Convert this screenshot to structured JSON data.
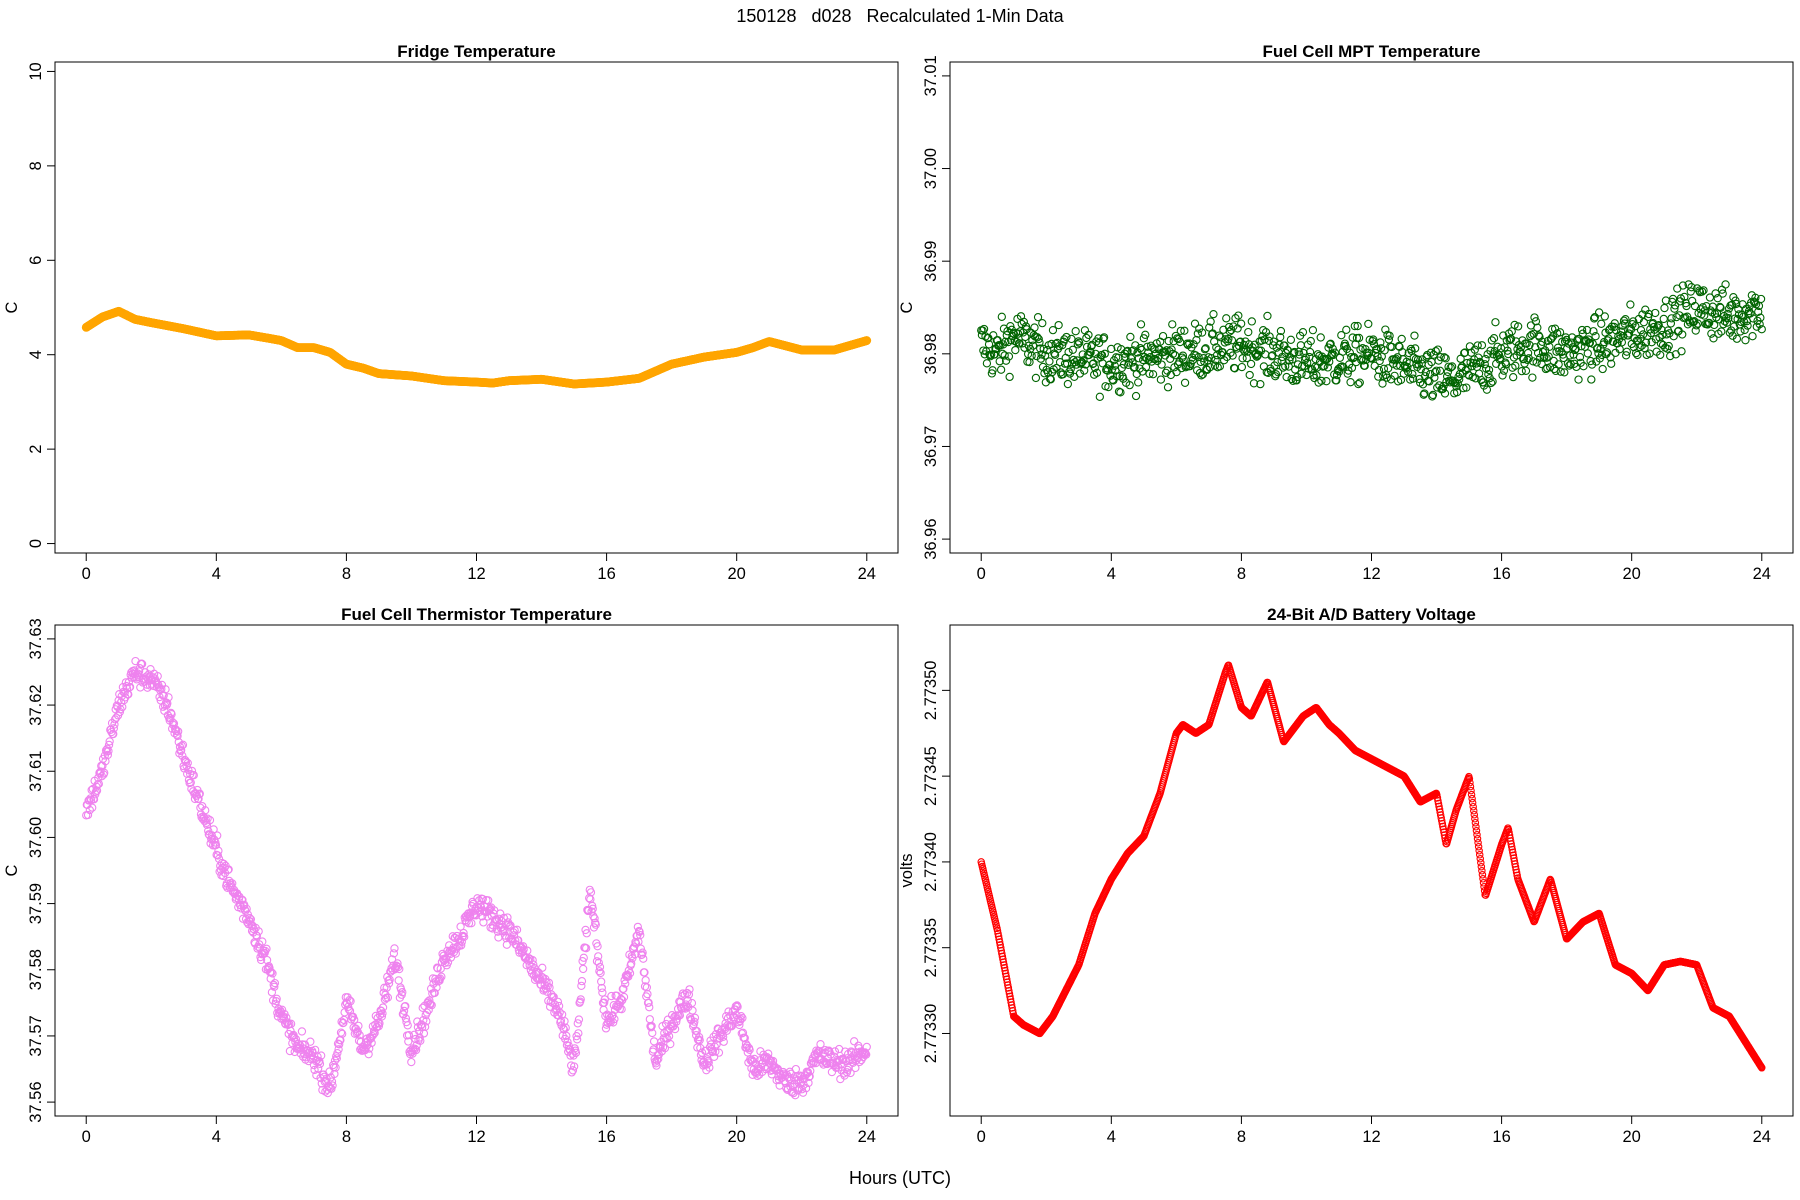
{
  "main_title": "150128   d028   Recalculated 1-Min Data",
  "x_axis_label": "Hours (UTC)",
  "colors": {
    "fridge": "#ffa500",
    "mpt": "#006400",
    "thermistor": "#ee82ee",
    "battery": "#ff0000"
  },
  "chart_data": [
    {
      "type": "scatter",
      "title": "Fridge Temperature",
      "ylabel": "C",
      "xlim": [
        0,
        24
      ],
      "ylim": [
        0,
        10
      ],
      "xticks": [
        "0",
        "4",
        "8",
        "12",
        "16",
        "20",
        "24"
      ],
      "yticks": [
        "0",
        "2",
        "4",
        "6",
        "8",
        "10"
      ],
      "series_x": [
        0,
        0.5,
        1,
        1.5,
        2,
        3,
        4,
        5,
        5.6,
        6,
        6.5,
        7,
        7.5,
        8,
        8.5,
        9,
        10,
        11,
        12,
        12.5,
        13,
        14,
        15,
        16,
        17,
        17.5,
        18,
        19,
        20,
        20.5,
        21,
        22,
        23,
        24
      ],
      "series_y": [
        4.58,
        4.8,
        4.92,
        4.75,
        4.68,
        4.55,
        4.4,
        4.42,
        4.35,
        4.3,
        4.15,
        4.15,
        4.05,
        3.8,
        3.72,
        3.6,
        3.55,
        3.45,
        3.42,
        3.4,
        3.45,
        3.48,
        3.38,
        3.42,
        3.5,
        3.65,
        3.8,
        3.95,
        4.05,
        4.15,
        4.28,
        4.1,
        4.1,
        4.3
      ]
    },
    {
      "type": "scatter",
      "title": "Fuel Cell MPT Temperature",
      "ylabel": "C",
      "xlim": [
        0,
        24
      ],
      "ylim": [
        36.96,
        37.01
      ],
      "xticks": [
        "0",
        "4",
        "8",
        "12",
        "16",
        "20",
        "24"
      ],
      "yticks": [
        "36.96",
        "36.97",
        "36.98",
        "36.99",
        "37.00",
        "37.01"
      ],
      "series_x": [
        0,
        0.5,
        1,
        2,
        4,
        6,
        8,
        10,
        12,
        13.5,
        14.5,
        16,
        17,
        18,
        20,
        21,
        22,
        23,
        24
      ],
      "series_y": [
        36.981,
        36.98,
        36.982,
        36.98,
        36.979,
        36.98,
        36.981,
        36.979,
        36.98,
        36.978,
        36.977,
        36.98,
        36.981,
        36.98,
        36.982,
        36.983,
        36.985,
        36.984,
        36.985
      ],
      "spread": 0.006
    },
    {
      "type": "scatter",
      "title": "Fuel Cell Thermistor Temperature",
      "ylabel": "C",
      "xlim": [
        0,
        24
      ],
      "ylim": [
        37.56,
        37.63
      ],
      "xticks": [
        "0",
        "4",
        "8",
        "12",
        "16",
        "20",
        "24"
      ],
      "yticks": [
        "37.56",
        "37.57",
        "37.58",
        "37.59",
        "37.60",
        "37.61",
        "37.62",
        "37.63"
      ],
      "series_x": [
        0,
        0.5,
        1,
        1.5,
        2,
        2.5,
        3,
        3.5,
        4,
        4.5,
        5,
        5.5,
        6,
        6.5,
        7,
        7.5,
        8,
        8.5,
        9,
        9.5,
        10,
        10.5,
        11,
        11.5,
        12,
        12.5,
        13,
        13.5,
        14,
        14.5,
        15,
        15.5,
        16,
        16.5,
        17,
        17.5,
        18,
        18.5,
        19,
        19.5,
        20,
        20.5,
        21,
        21.5,
        22,
        22.5,
        23,
        23.5,
        24
      ],
      "series_y": [
        37.604,
        37.61,
        37.62,
        37.625,
        37.624,
        37.62,
        37.612,
        37.605,
        37.598,
        37.592,
        37.588,
        37.582,
        37.573,
        37.568,
        37.567,
        37.562,
        37.575,
        37.568,
        37.572,
        37.582,
        37.568,
        37.574,
        37.582,
        37.585,
        37.59,
        37.588,
        37.586,
        37.582,
        37.578,
        37.574,
        37.565,
        37.592,
        37.572,
        37.576,
        37.586,
        37.566,
        37.572,
        37.576,
        37.566,
        37.57,
        37.574,
        37.565,
        37.566,
        37.563,
        37.563,
        37.567,
        37.566,
        37.566,
        37.568
      ],
      "spread": 0.004
    },
    {
      "type": "scatter",
      "title": "24-Bit A/D Battery Voltage",
      "ylabel": "volts",
      "xlim": [
        0,
        24
      ],
      "ylim": [
        2.77326,
        2.77353
      ],
      "xticks": [
        "0",
        "4",
        "8",
        "12",
        "16",
        "20",
        "24"
      ],
      "yticks": [
        "2.77330",
        "2.77335",
        "2.77340",
        "2.77345",
        "2.77350"
      ],
      "series_x": [
        0,
        0.5,
        1,
        1.3,
        1.8,
        2.2,
        3,
        3.5,
        4,
        4.5,
        5,
        5.5,
        6,
        6.2,
        6.6,
        7,
        7.5,
        7.6,
        8,
        8.3,
        8.8,
        9.3,
        9.9,
        10.3,
        10.7,
        11,
        11.5,
        12,
        12.5,
        13,
        13.5,
        14,
        14.3,
        14.6,
        15,
        15.5,
        16,
        16.2,
        16.5,
        17,
        17.5,
        18,
        18.5,
        19,
        19.5,
        20,
        20.5,
        21,
        21.5,
        22,
        22.5,
        23,
        23.5,
        24
      ],
      "series_y": [
        2.7734,
        2.77336,
        2.77331,
        2.773305,
        2.7733,
        2.77331,
        2.77334,
        2.77337,
        2.77339,
        2.773405,
        2.773415,
        2.77344,
        2.773475,
        2.77348,
        2.773475,
        2.77348,
        2.77351,
        2.773515,
        2.77349,
        2.773485,
        2.773505,
        2.77347,
        2.773485,
        2.77349,
        2.77348,
        2.773475,
        2.773465,
        2.77346,
        2.773455,
        2.77345,
        2.773435,
        2.77344,
        2.77341,
        2.77343,
        2.77345,
        2.77338,
        2.77341,
        2.77342,
        2.77339,
        2.773365,
        2.77339,
        2.773355,
        2.773365,
        2.77337,
        2.77334,
        2.773335,
        2.773325,
        2.77334,
        2.773342,
        2.77334,
        2.773315,
        2.77331,
        2.773295,
        2.77328
      ]
    }
  ]
}
